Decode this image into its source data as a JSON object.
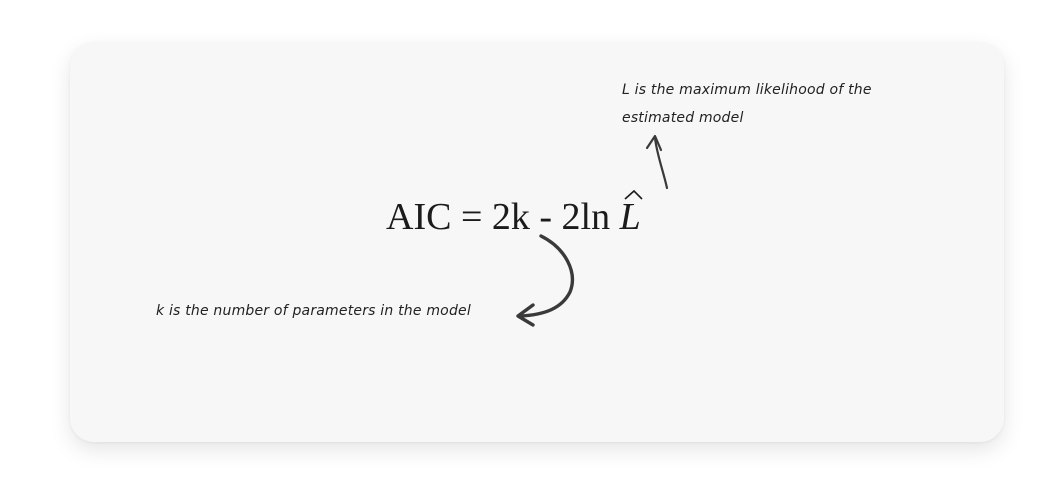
{
  "formula": {
    "text": "AIC = 2k - 2ln ",
    "symbol": "L"
  },
  "annotations": {
    "top_line1": "L is the maximum likelihood of the",
    "top_line2": "estimated model",
    "bottom": "k is the number of parameters in the model"
  },
  "colors": {
    "background": "#ffffff",
    "card": "#f7f7f8",
    "ink": "#1b1b1b",
    "arrow": "#3a3a3a"
  }
}
